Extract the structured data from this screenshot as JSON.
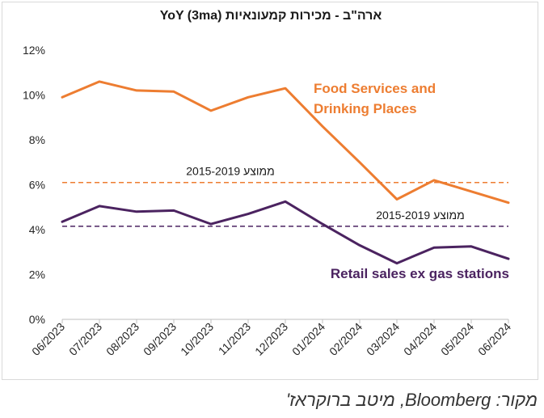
{
  "title": "ארה\"ב - מכירות קמעונאיות YoY (3ma)",
  "source": {
    "prefix": "מקור:",
    "brand": "Bloomberg",
    "suffix": ", מיטב ברוקראז'"
  },
  "colors": {
    "food": "#ed7d31",
    "retail": "#4b2360",
    "axis": "#bfbfbf",
    "text": "#262626"
  },
  "chart_data": {
    "type": "line",
    "title": "ארה\"ב - מכירות קמעונאיות YoY (3ma)",
    "categories": [
      "06/2023",
      "07/2023",
      "08/2023",
      "09/2023",
      "10/2023",
      "11/2023",
      "12/2023",
      "01/2024",
      "02/2024",
      "03/2024",
      "04/2024",
      "05/2024",
      "06/2024"
    ],
    "ylim": [
      0,
      12
    ],
    "yticks": [
      0,
      2,
      4,
      6,
      8,
      10,
      12
    ],
    "ytick_labels": [
      "0%",
      "2%",
      "4%",
      "6%",
      "8%",
      "10%",
      "12%"
    ],
    "grid": false,
    "series": [
      {
        "key": "food",
        "name": "Food Services and Drinking Places",
        "name_lines": [
          "Food Services and",
          "Drinking Places"
        ],
        "values": [
          9.9,
          10.6,
          10.2,
          10.15,
          9.3,
          9.9,
          10.3,
          8.6,
          7.0,
          5.35,
          6.2,
          5.7,
          5.2
        ]
      },
      {
        "key": "retail",
        "name": "Retail sales ex gas stations",
        "name_lines": [
          "Retail sales ex gas stations"
        ],
        "values": [
          4.35,
          5.05,
          4.8,
          4.85,
          4.25,
          4.7,
          5.25,
          4.25,
          3.3,
          2.5,
          3.2,
          3.25,
          2.7
        ]
      }
    ],
    "reference_lines": [
      {
        "key": "food_avg",
        "label": "ממוצע 2015-2019",
        "value": 6.1,
        "series": "food"
      },
      {
        "key": "retail_avg",
        "label": "ממוצע 2015-2019",
        "value": 4.15,
        "series": "retail"
      }
    ]
  }
}
